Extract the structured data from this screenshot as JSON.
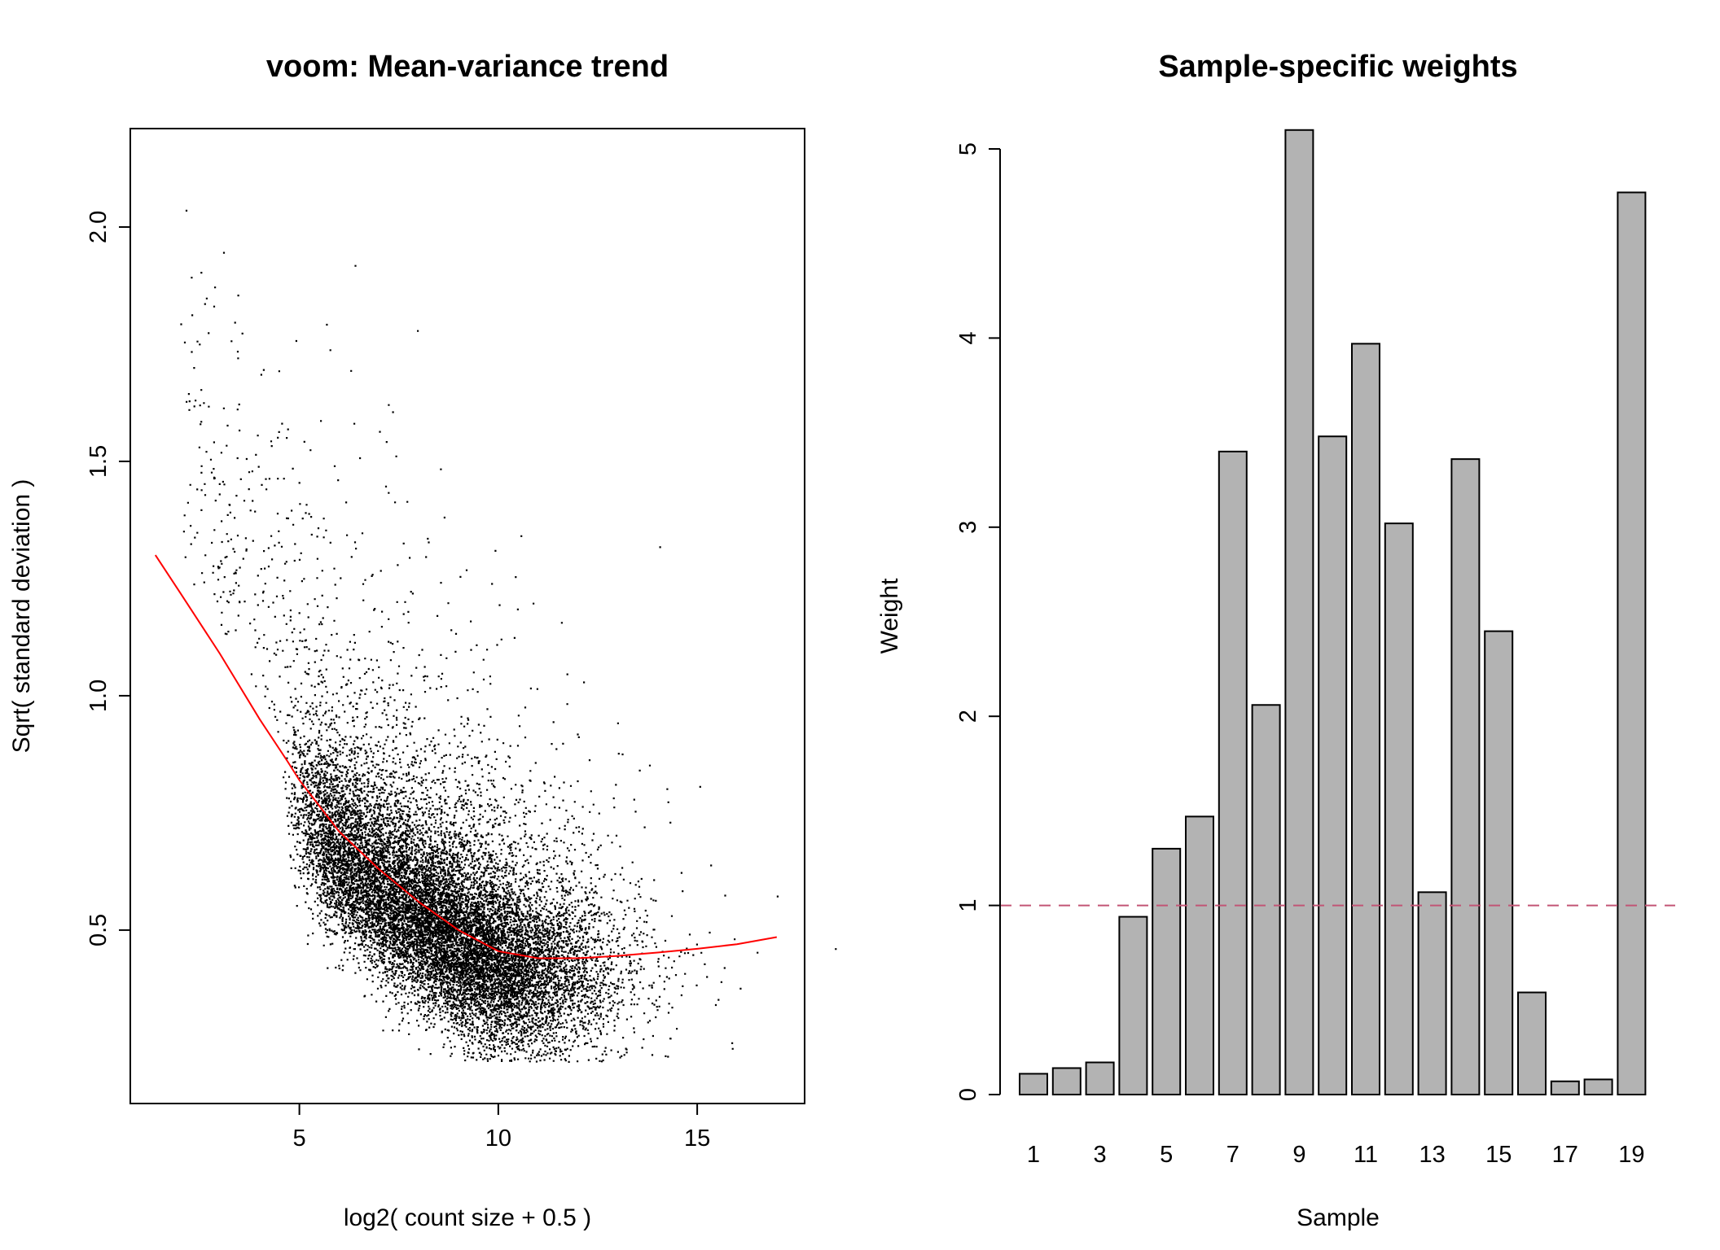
{
  "chart_data": [
    {
      "type": "scatter",
      "title": "voom: Mean-variance trend",
      "xlabel": "log2( count size + 0.5 )",
      "ylabel": "Sqrt( standard deviation )",
      "xlim": [
        0.75,
        17.7
      ],
      "ylim": [
        0.13,
        2.21
      ],
      "xticks": [
        5,
        10,
        15
      ],
      "yticks": [
        0.5,
        1.0,
        1.5,
        2.0
      ],
      "ytick_labels": [
        "0.5",
        "1.0",
        "1.5",
        "2.0"
      ],
      "grid": false,
      "point_color": "#000000",
      "trend": {
        "color": "#ff0000",
        "x": [
          1.38,
          2,
          3,
          4,
          4.7,
          5,
          6,
          7,
          8,
          9,
          10,
          11,
          12,
          13,
          14,
          15,
          16,
          17
        ],
        "y": [
          1.3,
          1.22,
          1.09,
          0.95,
          0.86,
          0.82,
          0.71,
          0.63,
          0.56,
          0.5,
          0.455,
          0.44,
          0.44,
          0.445,
          0.452,
          0.46,
          0.47,
          0.485
        ]
      }
    },
    {
      "type": "bar",
      "title": "Sample-specific weights",
      "xlabel": "Sample",
      "ylabel": "Weight",
      "categories": [
        "1",
        "2",
        "3",
        "4",
        "5",
        "6",
        "7",
        "8",
        "9",
        "10",
        "11",
        "12",
        "13",
        "14",
        "15",
        "16",
        "17",
        "18",
        "19"
      ],
      "xtick_labels": [
        "1",
        "3",
        "5",
        "7",
        "9",
        "11",
        "13",
        "15",
        "17",
        "19"
      ],
      "values": [
        0.11,
        0.14,
        0.17,
        0.94,
        1.3,
        1.47,
        3.4,
        2.06,
        5.1,
        3.48,
        3.97,
        3.02,
        1.07,
        3.36,
        2.45,
        0.54,
        0.07,
        0.08,
        4.77
      ],
      "ylim": [
        0,
        5
      ],
      "yticks": [
        0,
        1,
        2,
        3,
        4,
        5
      ],
      "bar_color": "#b3b3b3",
      "reference_line": {
        "y": 1,
        "style": "dashed",
        "color": "#c25575"
      },
      "grid": false
    }
  ]
}
